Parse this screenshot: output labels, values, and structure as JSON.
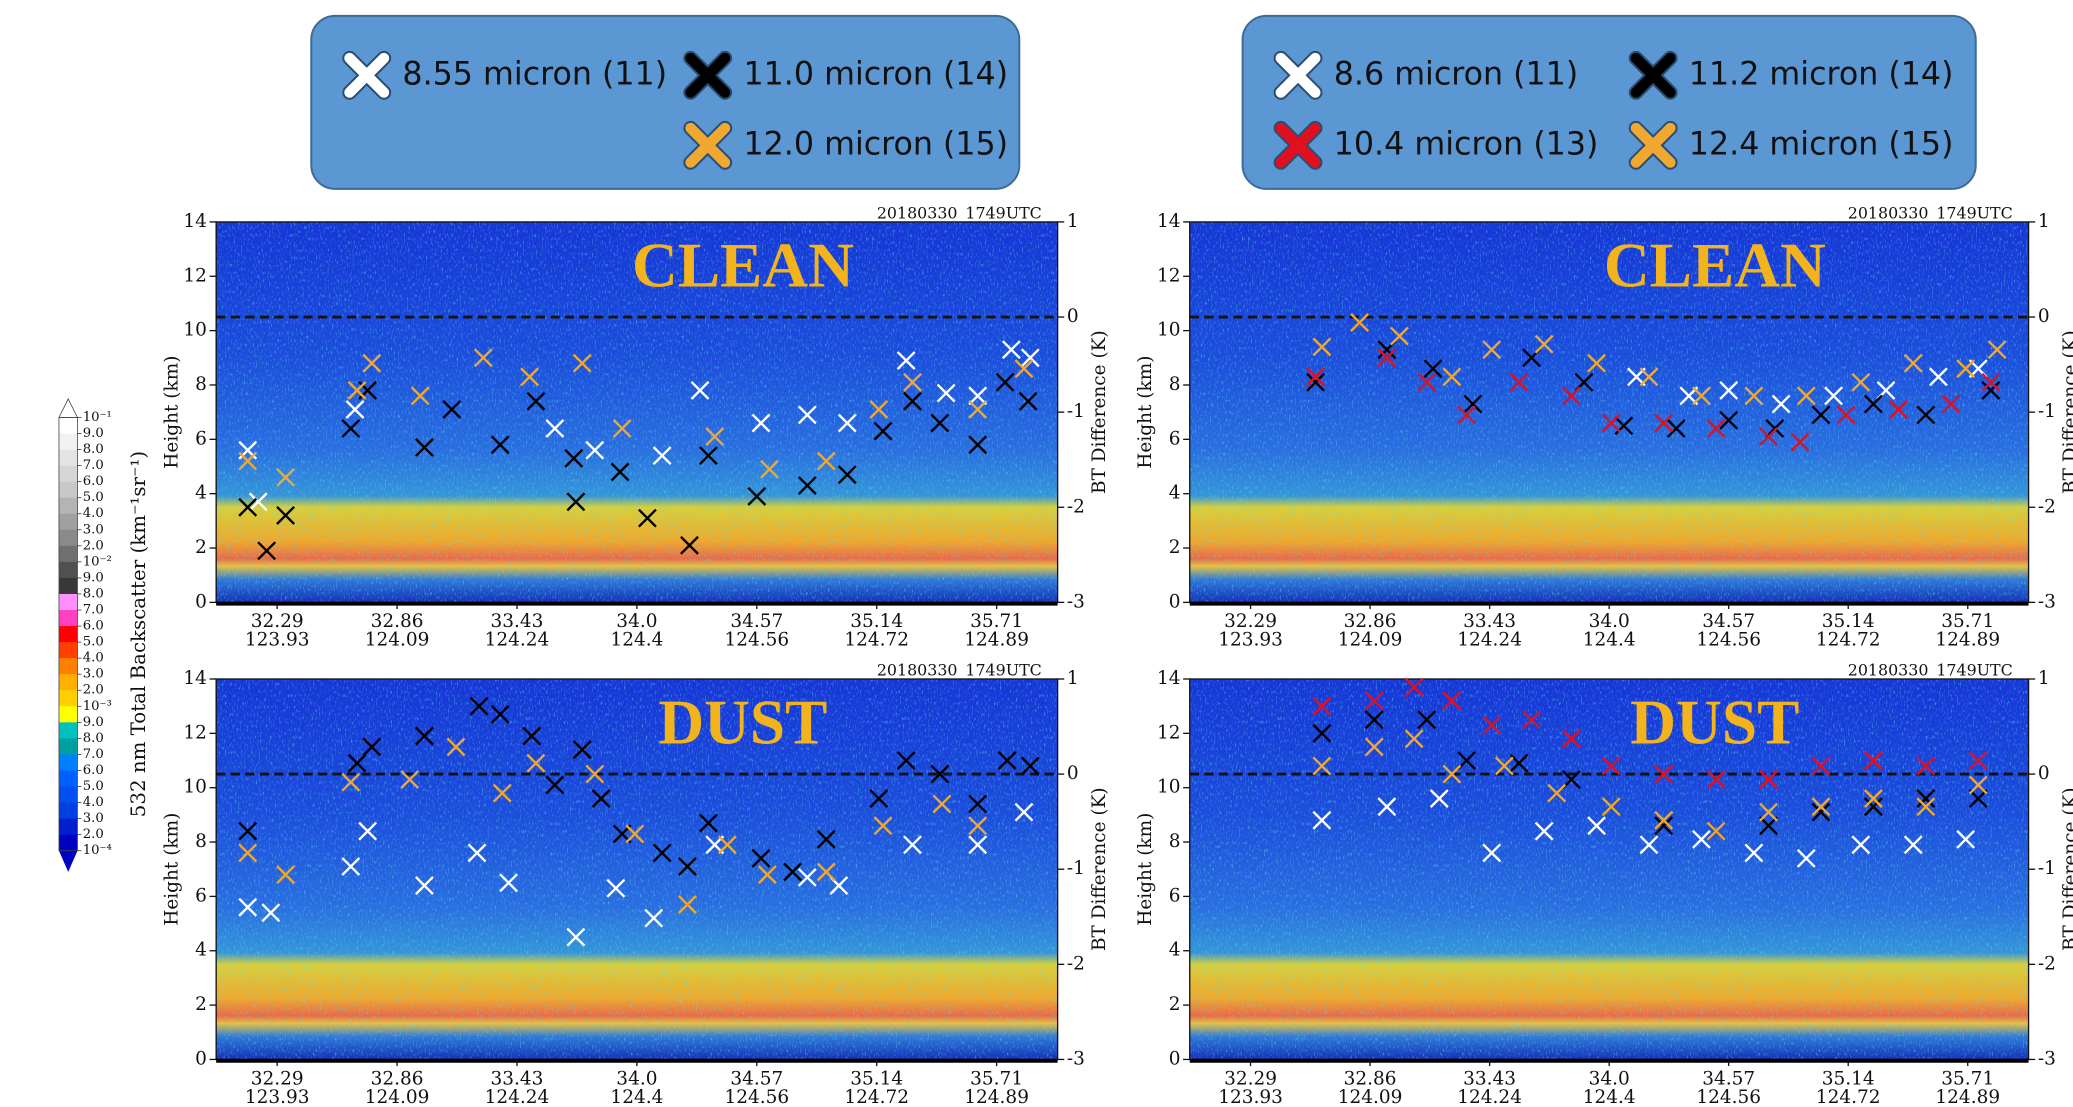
{
  "colorbar": {
    "label": "532 nm Total Backscatter (km⁻¹sr⁻¹)",
    "tick_labels": [
      "10⁻¹",
      "9.0",
      "8.0",
      "7.0",
      "6.0",
      "5.0",
      "4.0",
      "3.0",
      "2.0",
      "10⁻²",
      "9.0",
      "8.0",
      "7.0",
      "6.0",
      "5.0",
      "4.0",
      "3.0",
      "2.0",
      "10⁻³",
      "9.0",
      "8.0",
      "7.0",
      "6.0",
      "5.0",
      "4.0",
      "3.0",
      "2.0",
      "10⁻⁴"
    ],
    "colors": [
      "#ffffff",
      "#f2f2f2",
      "#e4e4e4",
      "#d6d6d6",
      "#c8c8c8",
      "#b4b4b4",
      "#a0a0a0",
      "#8a8a8a",
      "#707070",
      "#505050",
      "#383838",
      "#ff90ff",
      "#ff40c0",
      "#ff0000",
      "#ff4000",
      "#ff8000",
      "#ffb000",
      "#ffd000",
      "#ffff00",
      "#00c0c0",
      "#00a0a0",
      "#0080ff",
      "#0060ff",
      "#0050f0",
      "#0040e0",
      "#0020d0",
      "#0000c0"
    ]
  },
  "chart_data": [
    {
      "type": "scatter",
      "title": "CLEAN",
      "timestamp": "20180330_1749UTC",
      "ylabel": "Height (km)",
      "y2label": "BT Difference (K)",
      "xlim": [
        32,
        36
      ],
      "xticks": [
        32.29,
        32.86,
        33.43,
        {
          "value": 34,
          "label": "34.0"
        },
        34.57,
        35.14,
        35.71
      ],
      "xticks_secondary": [
        "123.93",
        "124.09",
        "124.24",
        "124.4",
        "124.56",
        "124.72",
        "124.89"
      ],
      "ylim": [
        0,
        14
      ],
      "yticks": [
        0,
        2,
        4,
        6,
        8,
        10,
        12,
        14
      ],
      "y2lim": [
        -3,
        1
      ],
      "y2ticks": [
        -3,
        -2,
        -1,
        0,
        1
      ],
      "reference_line_y2": 0,
      "legend": "above",
      "series": [
        {
          "name": "8.55 micron (11)",
          "color": "#ffffff",
          "x": [
            32.15,
            32.2,
            32.66,
            33.61,
            33.8,
            34.12,
            34.3,
            34.59,
            34.81,
            35.0,
            35.28,
            35.47,
            35.62,
            35.78,
            35.87
          ],
          "values": [
            5.6,
            3.7,
            7.1,
            6.4,
            5.6,
            5.4,
            7.8,
            6.6,
            6.9,
            6.6,
            8.9,
            7.7,
            7.6,
            9.3,
            9.0
          ]
        },
        {
          "name": "11.0 micron (14)",
          "color": "#000000",
          "x": [
            32.15,
            32.24,
            32.33,
            32.64,
            32.72,
            32.99,
            33.12,
            33.35,
            33.52,
            33.7,
            33.71,
            33.92,
            34.05,
            34.25,
            34.34,
            34.57,
            34.81,
            35.0,
            35.17,
            35.31,
            35.44,
            35.62,
            35.75,
            35.86
          ],
          "values": [
            3.5,
            1.9,
            3.2,
            6.4,
            7.8,
            5.7,
            7.1,
            5.8,
            7.4,
            5.3,
            3.7,
            4.8,
            3.1,
            2.1,
            5.4,
            3.9,
            4.3,
            4.7,
            6.3,
            7.4,
            6.6,
            5.8,
            8.1,
            7.4
          ]
        },
        {
          "name": "12.0 micron (15)",
          "color": "#f0a830",
          "x": [
            32.15,
            32.33,
            32.67,
            32.74,
            32.97,
            33.27,
            33.49,
            33.74,
            33.93,
            34.37,
            34.63,
            34.9,
            35.15,
            35.31,
            35.62,
            35.84
          ],
          "values": [
            5.2,
            4.6,
            7.8,
            8.8,
            7.6,
            9.0,
            8.3,
            8.8,
            6.4,
            6.1,
            4.9,
            5.2,
            7.1,
            8.1,
            7.1,
            8.6
          ]
        }
      ]
    },
    {
      "type": "scatter",
      "title": "DUST",
      "timestamp": "20180330_1749UTC",
      "ylabel": "Height (km)",
      "y2label": "BT Difference (K)",
      "xlim": [
        32,
        36
      ],
      "xticks": [
        32.29,
        32.86,
        33.43,
        {
          "value": 34,
          "label": "34.0"
        },
        34.57,
        35.14,
        35.71
      ],
      "xticks_secondary": [
        "123.93",
        "124.09",
        "124.24",
        "124.4",
        "124.56",
        "124.72",
        "124.89"
      ],
      "ylim": [
        0,
        14
      ],
      "yticks": [
        0,
        2,
        4,
        6,
        8,
        10,
        12,
        14
      ],
      "y2lim": [
        -3,
        1
      ],
      "y2ticks": [
        -3,
        -2,
        -1,
        0,
        1
      ],
      "reference_line_y2": 0,
      "series": [
        {
          "color": "#ffffff",
          "x": [
            32.15,
            32.26,
            32.64,
            32.72,
            32.99,
            33.24,
            33.39,
            33.71,
            33.9,
            34.08,
            34.37,
            34.81,
            34.96,
            35.31,
            35.62,
            35.84
          ],
          "values": [
            5.6,
            5.4,
            7.1,
            8.4,
            6.4,
            7.6,
            6.5,
            4.5,
            6.3,
            5.2,
            7.9,
            6.7,
            6.4,
            7.9,
            7.9,
            9.1
          ]
        },
        {
          "color": "#000000",
          "x": [
            32.15,
            32.67,
            32.74,
            32.99,
            33.25,
            33.35,
            33.5,
            33.61,
            33.74,
            33.83,
            33.93,
            34.12,
            34.24,
            34.34,
            34.59,
            34.74,
            34.9,
            35.15,
            35.28,
            35.44,
            35.62,
            35.76,
            35.87
          ],
          "values": [
            8.4,
            10.9,
            11.5,
            11.9,
            13.0,
            12.7,
            11.9,
            10.1,
            11.4,
            9.6,
            8.3,
            7.6,
            7.1,
            8.7,
            7.4,
            6.9,
            8.1,
            9.6,
            11.0,
            10.5,
            9.4,
            11.0,
            10.8
          ]
        },
        {
          "color": "#f0a830",
          "x": [
            32.15,
            32.33,
            32.64,
            32.92,
            33.14,
            33.36,
            33.52,
            33.8,
            33.99,
            34.24,
            34.43,
            34.62,
            34.9,
            35.17,
            35.45,
            35.62
          ],
          "values": [
            7.6,
            6.8,
            10.2,
            10.3,
            11.5,
            9.8,
            10.9,
            10.5,
            8.3,
            5.7,
            7.9,
            6.8,
            6.9,
            8.6,
            9.4,
            8.6
          ]
        }
      ]
    },
    {
      "type": "scatter",
      "title": "CLEAN",
      "timestamp": "20180330_1749UTC",
      "ylabel": "Height (km)",
      "y2label": "BT Difference (K)",
      "xlim": [
        32,
        36
      ],
      "xticks": [
        32.29,
        32.86,
        33.43,
        {
          "value": 34,
          "label": "34.0"
        },
        34.57,
        35.14,
        35.71
      ],
      "xticks_secondary": [
        "123.93",
        "124.09",
        "124.24",
        "124.4",
        "124.56",
        "124.72",
        "124.89"
      ],
      "ylim": [
        0,
        14
      ],
      "yticks": [
        0,
        2,
        4,
        6,
        8,
        10,
        12,
        14
      ],
      "y2lim": [
        -3,
        1
      ],
      "y2ticks": [
        -3,
        -2,
        -1,
        0,
        1
      ],
      "reference_line_y2": 0,
      "legend": "above",
      "series": [
        {
          "name": "8.6 micron (11)",
          "color": "#ffffff",
          "x": [
            34.13,
            34.38,
            34.57,
            34.82,
            35.07,
            35.32,
            35.57,
            35.76
          ],
          "values": [
            8.3,
            7.6,
            7.8,
            7.3,
            7.6,
            7.8,
            8.3,
            8.6
          ]
        },
        {
          "name": "11.2 micron (14)",
          "color": "#000000",
          "x": [
            32.6,
            32.94,
            33.16,
            33.35,
            33.63,
            33.88,
            34.07,
            34.32,
            34.57,
            34.79,
            35.01,
            35.26,
            35.51,
            35.82
          ],
          "values": [
            8.1,
            9.3,
            8.6,
            7.3,
            9.0,
            8.1,
            6.5,
            6.4,
            6.7,
            6.4,
            6.9,
            7.3,
            6.9,
            7.8
          ]
        },
        {
          "name": "10.4 micron (13)",
          "color": "#e01020",
          "x": [
            32.6,
            32.94,
            33.13,
            33.32,
            33.57,
            33.82,
            34.01,
            34.26,
            34.51,
            34.76,
            34.91,
            35.13,
            35.38,
            35.63,
            35.82
          ],
          "values": [
            8.3,
            9.0,
            8.1,
            6.9,
            8.1,
            7.6,
            6.6,
            6.6,
            6.4,
            6.1,
            5.9,
            6.9,
            7.1,
            7.3,
            8.1
          ]
        },
        {
          "name": "12.4 micron (15)",
          "color": "#f0a830",
          "x": [
            32.63,
            32.81,
            33.0,
            33.25,
            33.44,
            33.69,
            33.94,
            34.19,
            34.44,
            34.69,
            34.94,
            35.2,
            35.45,
            35.7,
            35.85
          ],
          "values": [
            9.4,
            10.3,
            9.8,
            8.3,
            9.3,
            9.5,
            8.8,
            8.3,
            7.6,
            7.6,
            7.6,
            8.1,
            8.8,
            8.6,
            9.3
          ]
        }
      ]
    },
    {
      "type": "scatter",
      "title": "DUST",
      "timestamp": "20180330_1749UTC",
      "ylabel": "Height (km)",
      "y2label": "BT Difference (K)",
      "xlim": [
        32,
        36
      ],
      "xticks": [
        32.29,
        32.86,
        33.43,
        {
          "value": 34,
          "label": "34.0"
        },
        34.57,
        35.14,
        35.71
      ],
      "xticks_secondary": [
        "123.93",
        "124.09",
        "124.24",
        "124.4",
        "124.56",
        "124.72",
        "124.89"
      ],
      "ylim": [
        0,
        14
      ],
      "yticks": [
        0,
        2,
        4,
        6,
        8,
        10,
        12,
        14
      ],
      "y2lim": [
        -3,
        1
      ],
      "y2ticks": [
        -3,
        -2,
        -1,
        0,
        1
      ],
      "reference_line_y2": 0,
      "series": [
        {
          "color": "#ffffff",
          "x": [
            32.63,
            32.94,
            33.19,
            33.44,
            33.69,
            33.94,
            34.19,
            34.44,
            34.69,
            34.94,
            35.2,
            35.45,
            35.7
          ],
          "values": [
            8.8,
            9.3,
            9.6,
            7.6,
            8.4,
            8.6,
            7.9,
            8.1,
            7.6,
            7.4,
            7.9,
            7.9,
            8.1
          ]
        },
        {
          "color": "#000000",
          "x": [
            32.63,
            32.88,
            33.13,
            33.32,
            33.57,
            33.82,
            34.01,
            34.26,
            34.51,
            34.76,
            35.01,
            35.26,
            35.51,
            35.76
          ],
          "values": [
            12.0,
            12.5,
            12.5,
            11.0,
            10.9,
            10.3,
            9.3,
            8.6,
            8.4,
            8.6,
            9.1,
            9.3,
            9.6,
            9.6
          ]
        },
        {
          "color": "#e01020",
          "x": [
            32.63,
            32.88,
            33.07,
            33.25,
            33.44,
            33.63,
            33.82,
            34.01,
            34.26,
            34.51,
            34.76,
            35.01,
            35.26,
            35.51,
            35.76
          ],
          "values": [
            13.0,
            13.2,
            13.7,
            13.2,
            12.3,
            12.5,
            11.8,
            10.8,
            10.5,
            10.3,
            10.3,
            10.8,
            11.0,
            10.8,
            11.0
          ]
        },
        {
          "color": "#f0a830",
          "x": [
            32.63,
            32.88,
            33.07,
            33.25,
            33.5,
            33.75,
            34.01,
            34.26,
            34.51,
            34.76,
            35.01,
            35.26,
            35.51,
            35.76
          ],
          "values": [
            10.8,
            11.5,
            11.8,
            10.5,
            10.8,
            9.8,
            9.3,
            8.8,
            8.4,
            9.1,
            9.3,
            9.6,
            9.3,
            10.1
          ]
        }
      ]
    }
  ]
}
